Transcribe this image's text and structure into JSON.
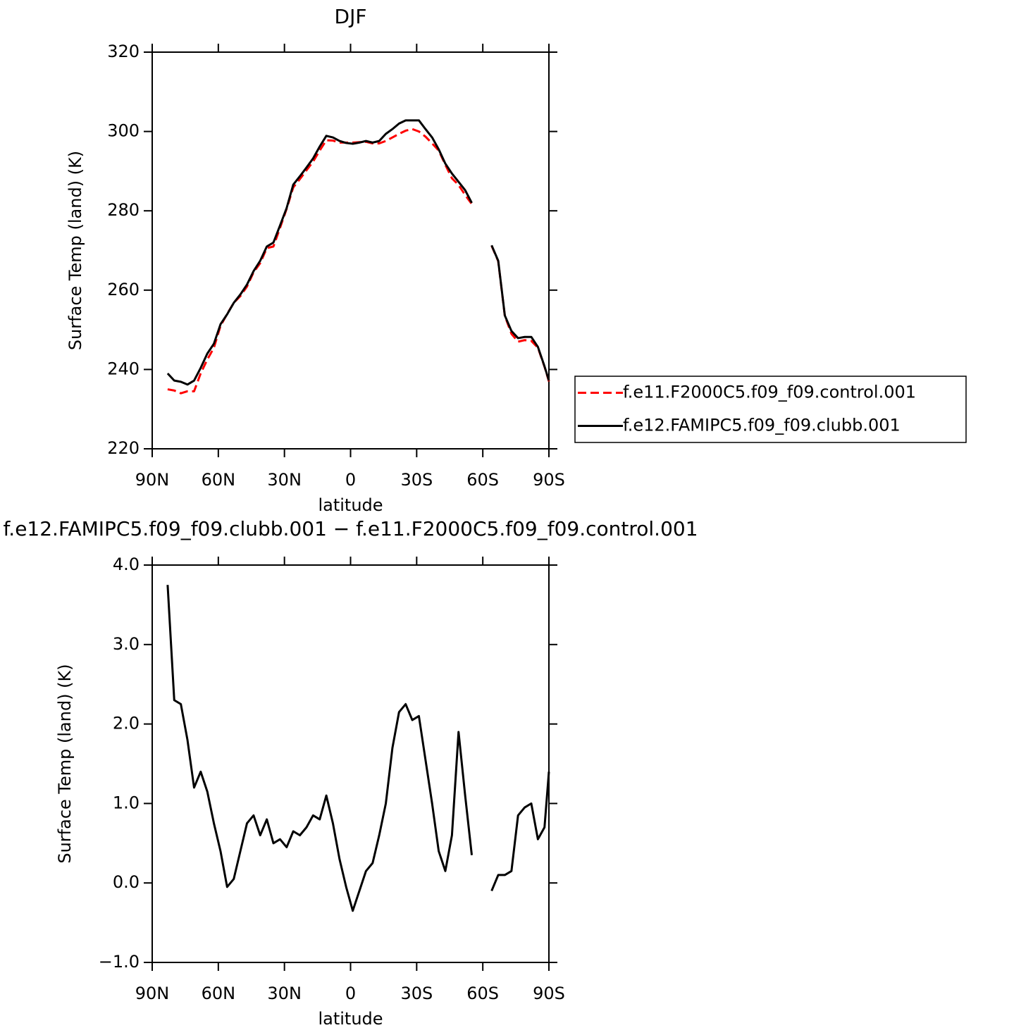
{
  "chart_data": [
    {
      "type": "line",
      "title": "DJF",
      "x_label": "latitude",
      "y_label": "Surface Temp (land) (K)",
      "x": [
        83,
        80,
        77,
        74,
        71,
        68,
        65,
        62,
        59,
        56,
        53,
        50,
        47,
        44,
        41,
        38,
        35,
        32,
        29,
        26,
        23,
        20,
        17,
        14,
        11,
        8,
        5,
        2,
        -1,
        -4,
        -7,
        -10,
        -13,
        -16,
        -19,
        -22,
        -25,
        -28,
        -31,
        -34,
        -37,
        -40,
        -43,
        -46,
        -49,
        -52,
        -55,
        -58,
        -61,
        -64,
        -67,
        -70,
        -73,
        -76,
        -79,
        -82,
        -85,
        -88,
        -90
      ],
      "series": [
        {
          "name": "f.e11.F2000C5.f09_f09.control.001",
          "color": "#ff0000",
          "line_style": "dashed",
          "values": [
            235,
            234.7,
            234,
            234.5,
            234.5,
            239,
            242.5,
            245.5,
            251,
            254,
            256.8,
            258.5,
            260.9,
            264.5,
            266.8,
            270.6,
            271,
            275.7,
            280.5,
            285.9,
            288,
            290.2,
            292.4,
            295.2,
            297.8,
            297.7,
            297.2,
            297.2,
            297.2,
            297.3,
            297.4,
            297,
            297,
            297.6,
            298.5,
            299.4,
            300.2,
            300.6,
            300,
            298.7,
            297,
            295.2,
            291.6,
            288.2,
            286.5,
            284,
            281.7,
            null,
            null,
            271.2,
            267.3,
            253.5,
            249,
            247,
            247.4,
            247.2,
            245.5,
            240.7,
            237
          ]
        },
        {
          "name": "f.e12.FAMIPC5.f09_f09.clubb.001",
          "color": "#000000",
          "line_style": "solid",
          "values": [
            239,
            237.2,
            236.9,
            236.2,
            237.2,
            240.4,
            244,
            246.5,
            251.4,
            253.9,
            256.8,
            258.9,
            261.4,
            264.8,
            267.4,
            271,
            272,
            276.3,
            280.7,
            286.6,
            288.7,
            290.9,
            293.2,
            296.2,
            298.9,
            298.5,
            297.6,
            297.1,
            296.9,
            297.2,
            297.6,
            297.2,
            297.6,
            299.4,
            300.6,
            302,
            302.8,
            302.8,
            302.8,
            300.6,
            298.5,
            295.5,
            291.9,
            289.4,
            287.3,
            285.2,
            282,
            null,
            null,
            271.3,
            267.4,
            253.6,
            249.7,
            247.9,
            248.2,
            248.2,
            245.7,
            240.8,
            237.2
          ]
        }
      ],
      "xlim": [
        90,
        -90
      ],
      "xticks": [
        {
          "value": 90,
          "label": "90N"
        },
        {
          "value": 60,
          "label": "60N"
        },
        {
          "value": 30,
          "label": "30N"
        },
        0,
        {
          "value": -30,
          "label": "30S"
        },
        {
          "value": -60,
          "label": "60S"
        },
        {
          "value": -90,
          "label": "90S"
        }
      ],
      "ylim": [
        220,
        320
      ],
      "yticks": [
        220,
        240,
        260,
        280,
        300,
        320
      ],
      "legend": "right"
    },
    {
      "type": "line",
      "title": "f.e12.FAMIPC5.f09_f09.clubb.001 − f.e11.F2000C5.f09_f09.control.001",
      "x_label": "latitude",
      "y_label": "Surface Temp (land) (K)",
      "x": [
        83,
        80,
        77,
        74,
        71,
        68,
        65,
        62,
        59,
        56,
        53,
        50,
        47,
        44,
        41,
        38,
        35,
        32,
        29,
        26,
        23,
        20,
        17,
        14,
        11,
        8,
        5,
        2,
        -1,
        -4,
        -7,
        -10,
        -13,
        -16,
        -19,
        -22,
        -25,
        -28,
        -31,
        -34,
        -37,
        -40,
        -43,
        -46,
        -49,
        -52,
        -55,
        -58,
        -61,
        -64,
        -67,
        -70,
        -73,
        -76,
        -79,
        -82,
        -85,
        -88,
        -90
      ],
      "series": [
        {
          "color": "#000000",
          "line_style": "solid",
          "values": [
            3.75,
            2.3,
            2.25,
            1.8,
            1.2,
            1.4,
            1.15,
            0.75,
            0.4,
            -0.05,
            0.05,
            0.4,
            0.75,
            0.85,
            0.6,
            0.8,
            0.5,
            0.55,
            0.45,
            0.65,
            0.6,
            0.7,
            0.85,
            0.8,
            1.1,
            0.75,
            0.3,
            -0.05,
            -0.35,
            -0.1,
            0.15,
            0.25,
            0.6,
            1.0,
            1.7,
            2.15,
            2.25,
            2.05,
            2.1,
            1.55,
            1.0,
            0.4,
            0.15,
            0.6,
            1.9,
            1.1,
            0.35,
            null,
            null,
            -0.1,
            0.1,
            0.1,
            0.15,
            0.85,
            0.95,
            1.0,
            0.55,
            0.7,
            1.4
          ]
        }
      ],
      "xlim": [
        90,
        -90
      ],
      "xticks": [
        {
          "value": 90,
          "label": "90N"
        },
        {
          "value": 60,
          "label": "60N"
        },
        {
          "value": 30,
          "label": "30N"
        },
        0,
        {
          "value": -30,
          "label": "30S"
        },
        {
          "value": -60,
          "label": "60S"
        },
        {
          "value": -90,
          "label": "90S"
        }
      ],
      "ylim": [
        -1,
        4
      ],
      "yticks": [
        {
          "value": -1,
          "label": "−1.0"
        },
        {
          "value": 0,
          "label": "0.0"
        },
        {
          "value": 1,
          "label": "1.0"
        },
        {
          "value": 2,
          "label": "2.0"
        },
        {
          "value": 3,
          "label": "3.0"
        },
        {
          "value": 4,
          "label": "4.0"
        }
      ]
    }
  ]
}
